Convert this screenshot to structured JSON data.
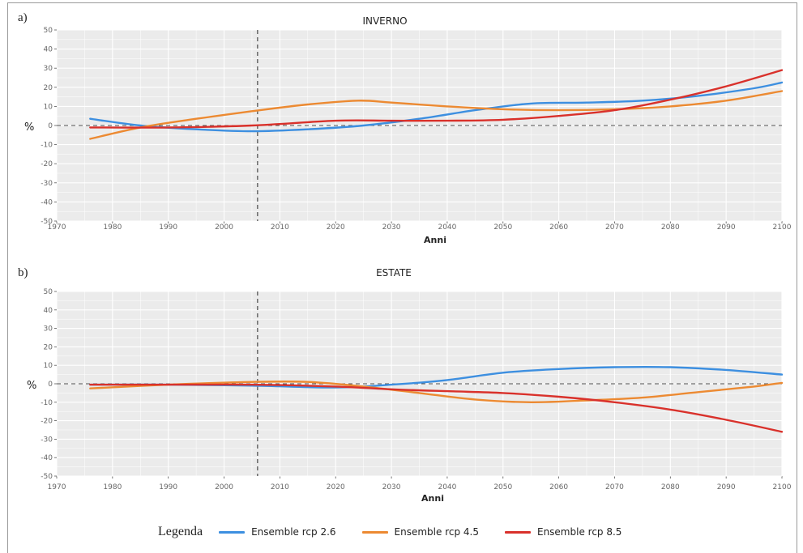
{
  "colors": {
    "rcp26": "#3d8fe0",
    "rcp45": "#ec8a32",
    "rcp85": "#d9312b",
    "panel_bg": "#ebebeb",
    "grid": "#ffffff"
  },
  "legend": {
    "title": "Legenda",
    "items": [
      {
        "label": "Ensemble rcp 2.6",
        "color_key": "rcp26"
      },
      {
        "label": "Ensemble rcp 4.5",
        "color_key": "rcp45"
      },
      {
        "label": "Ensemble rcp 8.5",
        "color_key": "rcp85"
      }
    ]
  },
  "chart_data": [
    {
      "panel_letter": "a)",
      "type": "line",
      "title": "INVERNO",
      "xlabel": "Anni",
      "ylabel": "%",
      "xlim": [
        1970,
        2100
      ],
      "ylim": [
        -50,
        50
      ],
      "xticks": [
        1970,
        1980,
        1990,
        2000,
        2010,
        2020,
        2030,
        2040,
        2050,
        2060,
        2070,
        2080,
        2090,
        2100
      ],
      "yticks": [
        -50,
        -40,
        -30,
        -20,
        -10,
        0,
        10,
        20,
        30,
        40,
        50
      ],
      "vline_x": 2006,
      "hline_y": 0,
      "grid": true,
      "series": [
        {
          "name": "Ensemble rcp 2.6",
          "color_key": "rcp26",
          "points": [
            [
              1976,
              3.5
            ],
            [
              1985,
              0
            ],
            [
              1995,
              -2
            ],
            [
              2005,
              -3
            ],
            [
              2015,
              -2
            ],
            [
              2025,
              0
            ],
            [
              2035,
              3.5
            ],
            [
              2045,
              8
            ],
            [
              2055,
              11.5
            ],
            [
              2065,
              12
            ],
            [
              2075,
              13
            ],
            [
              2085,
              15.5
            ],
            [
              2095,
              19.5
            ],
            [
              2100,
              22.5
            ]
          ]
        },
        {
          "name": "Ensemble rcp 4.5",
          "color_key": "rcp45",
          "points": [
            [
              1976,
              -7
            ],
            [
              1985,
              -1
            ],
            [
              1995,
              3.5
            ],
            [
              2005,
              7.5
            ],
            [
              2015,
              11
            ],
            [
              2024,
              13
            ],
            [
              2030,
              12
            ],
            [
              2040,
              10
            ],
            [
              2050,
              8.5
            ],
            [
              2060,
              8
            ],
            [
              2070,
              8.5
            ],
            [
              2080,
              10
            ],
            [
              2090,
              13
            ],
            [
              2100,
              18
            ]
          ]
        },
        {
          "name": "Ensemble rcp 8.5",
          "color_key": "rcp85",
          "points": [
            [
              1976,
              -1
            ],
            [
              1990,
              -1
            ],
            [
              2005,
              0
            ],
            [
              2020,
              2.5
            ],
            [
              2030,
              2.5
            ],
            [
              2040,
              2.5
            ],
            [
              2050,
              3
            ],
            [
              2060,
              5
            ],
            [
              2070,
              8
            ],
            [
              2080,
              13.5
            ],
            [
              2090,
              20.5
            ],
            [
              2100,
              29
            ]
          ]
        }
      ]
    },
    {
      "panel_letter": "b)",
      "type": "line",
      "title": "ESTATE",
      "xlabel": "Anni",
      "ylabel": "%",
      "xlim": [
        1970,
        2100
      ],
      "ylim": [
        -50,
        50
      ],
      "xticks": [
        1970,
        1980,
        1990,
        2000,
        2010,
        2020,
        2030,
        2040,
        2050,
        2060,
        2070,
        2080,
        2090,
        2100
      ],
      "yticks": [
        -50,
        -40,
        -30,
        -20,
        -10,
        0,
        10,
        20,
        30,
        40,
        50
      ],
      "vline_x": 2006,
      "hline_y": 0,
      "grid": true,
      "series": [
        {
          "name": "Ensemble rcp 2.6",
          "color_key": "rcp26",
          "points": [
            [
              1976,
              -0.5
            ],
            [
              1990,
              -0.5
            ],
            [
              2005,
              -1
            ],
            [
              2020,
              -2
            ],
            [
              2030,
              -0.5
            ],
            [
              2040,
              2
            ],
            [
              2050,
              6
            ],
            [
              2060,
              8
            ],
            [
              2070,
              9
            ],
            [
              2080,
              9
            ],
            [
              2090,
              7.5
            ],
            [
              2100,
              5
            ]
          ]
        },
        {
          "name": "Ensemble rcp 4.5",
          "color_key": "rcp45",
          "points": [
            [
              1976,
              -2.5
            ],
            [
              1990,
              -0.5
            ],
            [
              2005,
              1
            ],
            [
              2015,
              1
            ],
            [
              2025,
              -1.5
            ],
            [
              2035,
              -5
            ],
            [
              2045,
              -8.5
            ],
            [
              2055,
              -10
            ],
            [
              2065,
              -9
            ],
            [
              2075,
              -7.5
            ],
            [
              2085,
              -4.5
            ],
            [
              2095,
              -1.5
            ],
            [
              2100,
              0.5
            ]
          ]
        },
        {
          "name": "Ensemble rcp 8.5",
          "color_key": "rcp85",
          "points": [
            [
              1976,
              -0.5
            ],
            [
              1990,
              -0.5
            ],
            [
              2005,
              -0.5
            ],
            [
              2020,
              -1.5
            ],
            [
              2030,
              -3
            ],
            [
              2040,
              -4
            ],
            [
              2050,
              -5
            ],
            [
              2060,
              -7
            ],
            [
              2070,
              -10
            ],
            [
              2080,
              -14
            ],
            [
              2090,
              -19.5
            ],
            [
              2100,
              -26
            ]
          ]
        }
      ]
    }
  ]
}
